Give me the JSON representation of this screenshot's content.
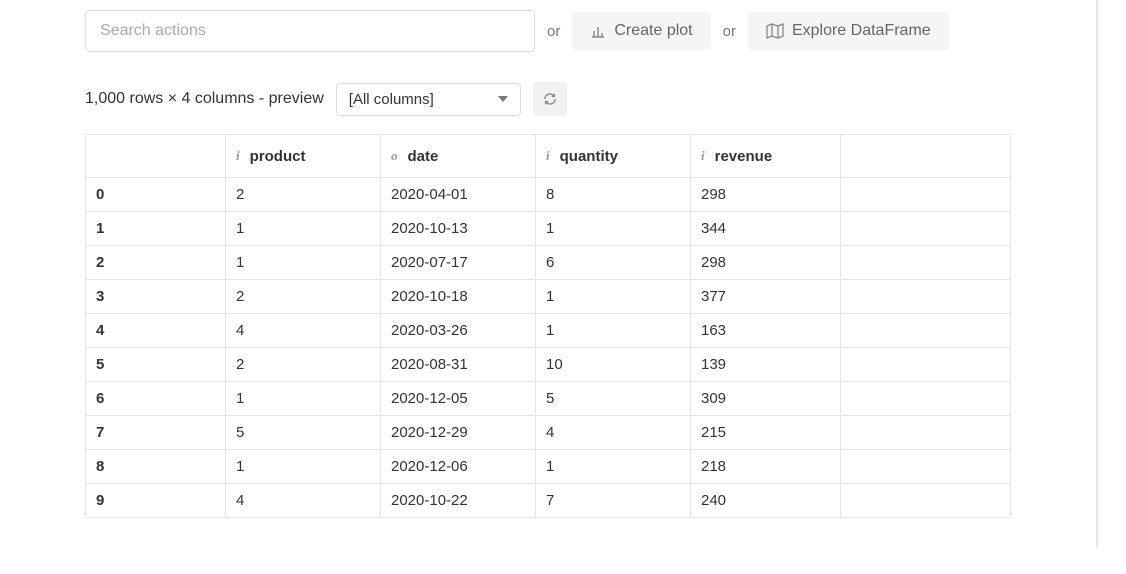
{
  "toolbar": {
    "search_placeholder": "Search actions",
    "or_label": "or",
    "create_plot_label": "Create plot",
    "explore_df_label": "Explore DataFrame"
  },
  "summary": {
    "text": "1,000 rows × 4 columns - preview",
    "column_selector_value": "[All columns]"
  },
  "table": {
    "columns": [
      {
        "name": "product",
        "dtype": "i"
      },
      {
        "name": "date",
        "dtype": "o"
      },
      {
        "name": "quantity",
        "dtype": "i"
      },
      {
        "name": "revenue",
        "dtype": "i"
      }
    ],
    "rows": [
      {
        "idx": "0",
        "product": "2",
        "date": "2020-04-01",
        "quantity": "8",
        "revenue": "298"
      },
      {
        "idx": "1",
        "product": "1",
        "date": "2020-10-13",
        "quantity": "1",
        "revenue": "344"
      },
      {
        "idx": "2",
        "product": "1",
        "date": "2020-07-17",
        "quantity": "6",
        "revenue": "298"
      },
      {
        "idx": "3",
        "product": "2",
        "date": "2020-10-18",
        "quantity": "1",
        "revenue": "377"
      },
      {
        "idx": "4",
        "product": "4",
        "date": "2020-03-26",
        "quantity": "1",
        "revenue": "163"
      },
      {
        "idx": "5",
        "product": "2",
        "date": "2020-08-31",
        "quantity": "10",
        "revenue": "139"
      },
      {
        "idx": "6",
        "product": "1",
        "date": "2020-12-05",
        "quantity": "5",
        "revenue": "309"
      },
      {
        "idx": "7",
        "product": "5",
        "date": "2020-12-29",
        "quantity": "4",
        "revenue": "215"
      },
      {
        "idx": "8",
        "product": "1",
        "date": "2020-12-06",
        "quantity": "1",
        "revenue": "218"
      },
      {
        "idx": "9",
        "product": "4",
        "date": "2020-10-22",
        "quantity": "7",
        "revenue": "240"
      }
    ]
  }
}
